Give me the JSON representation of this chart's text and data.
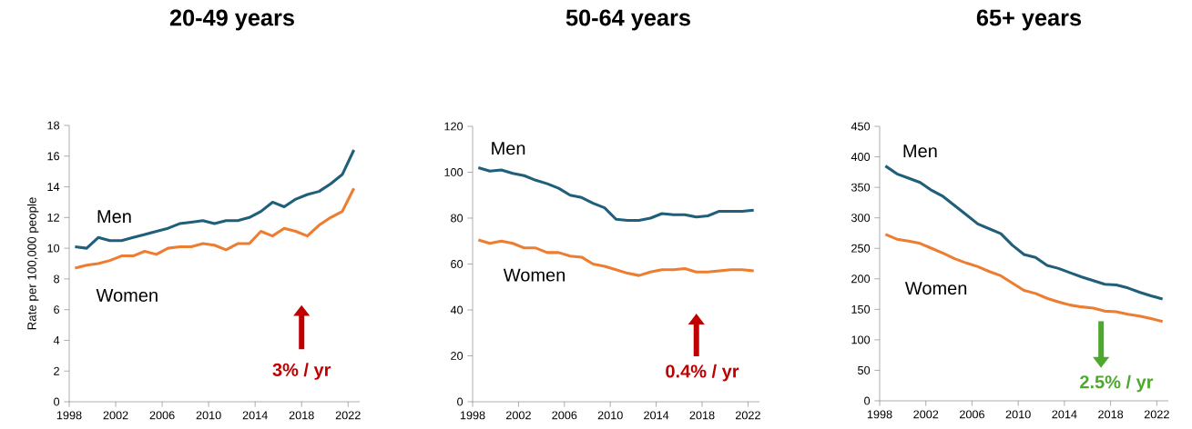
{
  "chart_data": [
    {
      "type": "line",
      "title": "20-49 years",
      "ylabel": "Rate per 100,000 people",
      "x": [
        1998.5,
        1999.5,
        2000.5,
        2001.5,
        2002.5,
        2003.5,
        2004.5,
        2005.5,
        2006.5,
        2007.5,
        2008.5,
        2009.5,
        2010.5,
        2011.5,
        2012.5,
        2013.5,
        2014.5,
        2015.5,
        2016.5,
        2017.5,
        2018.5,
        2019.5,
        2020.5,
        2021.5,
        2022.5
      ],
      "series": [
        {
          "name": "Men",
          "color": "#1f5f7a",
          "values": [
            10.1,
            10.0,
            10.7,
            10.5,
            10.5,
            10.7,
            10.9,
            11.1,
            11.3,
            11.6,
            11.7,
            11.8,
            11.6,
            11.8,
            11.8,
            12.0,
            12.4,
            13.0,
            12.7,
            13.2,
            13.5,
            13.7,
            14.2,
            14.8,
            16.4
          ]
        },
        {
          "name": "Women",
          "color": "#ed7d31",
          "values": [
            8.7,
            8.9,
            9.0,
            9.2,
            9.5,
            9.5,
            9.8,
            9.6,
            10.0,
            10.1,
            10.1,
            10.3,
            10.2,
            9.9,
            10.3,
            10.3,
            11.1,
            10.8,
            11.3,
            11.1,
            10.8,
            11.5,
            12.0,
            12.4,
            13.9
          ]
        }
      ],
      "xlim": [
        1998,
        2023
      ],
      "xticks": [
        1998,
        2002,
        2006,
        2010,
        2014,
        2018,
        2022
      ],
      "ylim": [
        0,
        18
      ],
      "yticks": [
        0,
        2,
        4,
        6,
        8,
        10,
        12,
        14,
        16,
        18
      ],
      "annotations": [
        "3% / yr"
      ]
    },
    {
      "type": "line",
      "title": "50-64 years",
      "x": [
        1998.5,
        1999.5,
        2000.5,
        2001.5,
        2002.5,
        2003.5,
        2004.5,
        2005.5,
        2006.5,
        2007.5,
        2008.5,
        2009.5,
        2010.5,
        2011.5,
        2012.5,
        2013.5,
        2014.5,
        2015.5,
        2016.5,
        2017.5,
        2018.5,
        2019.5,
        2020.5,
        2021.5,
        2022.5
      ],
      "series": [
        {
          "name": "Men",
          "color": "#1f5f7a",
          "values": [
            102,
            100.5,
            101,
            99.5,
            98.5,
            96.5,
            95,
            93,
            90,
            89,
            86.5,
            84.5,
            79.5,
            79,
            79,
            80,
            82,
            81.5,
            81.5,
            80.5,
            81,
            83,
            83,
            83,
            83.5
          ]
        },
        {
          "name": "Women",
          "color": "#ed7d31",
          "values": [
            70.5,
            69,
            70,
            69,
            67,
            67,
            65,
            65,
            63.5,
            63,
            60,
            59,
            57.5,
            56,
            55,
            56.5,
            57.5,
            57.5,
            58,
            56.5,
            56.5,
            57,
            57.5,
            57.5,
            57
          ]
        }
      ],
      "xlim": [
        1998,
        2023
      ],
      "xticks": [
        1998,
        2002,
        2006,
        2010,
        2014,
        2018,
        2022
      ],
      "ylim": [
        0,
        120
      ],
      "yticks": [
        0,
        20,
        40,
        60,
        80,
        100,
        120
      ],
      "annotations": [
        "0.4% / yr"
      ]
    },
    {
      "type": "line",
      "title": "65+ years",
      "x": [
        1998.5,
        1999.5,
        2000.5,
        2001.5,
        2002.5,
        2003.5,
        2004.5,
        2005.5,
        2006.5,
        2007.5,
        2008.5,
        2009.5,
        2010.5,
        2011.5,
        2012.5,
        2013.5,
        2014.5,
        2015.5,
        2016.5,
        2017.5,
        2018.5,
        2019.5,
        2020.5,
        2021.5,
        2022.5
      ],
      "series": [
        {
          "name": "Men",
          "color": "#1f5f7a",
          "values": [
            385,
            372,
            365,
            358,
            345,
            335,
            320,
            305,
            290,
            282,
            274,
            255,
            240,
            235,
            222,
            217,
            210,
            203,
            197,
            191,
            190,
            185,
            178,
            172,
            167
          ]
        },
        {
          "name": "Women",
          "color": "#ed7d31",
          "values": [
            273,
            265,
            262,
            258,
            250,
            242,
            233,
            226,
            220,
            212,
            205,
            193,
            181,
            176,
            168,
            162,
            157,
            154,
            152,
            147,
            146,
            142,
            139,
            135,
            130
          ]
        }
      ],
      "xlim": [
        1998,
        2023
      ],
      "xticks": [
        1998,
        2002,
        2006,
        2010,
        2014,
        2018,
        2022
      ],
      "ylim": [
        0,
        450
      ],
      "yticks": [
        0,
        50,
        100,
        150,
        200,
        250,
        300,
        350,
        400,
        450
      ],
      "annotations": [
        "2.5% / yr"
      ]
    }
  ]
}
